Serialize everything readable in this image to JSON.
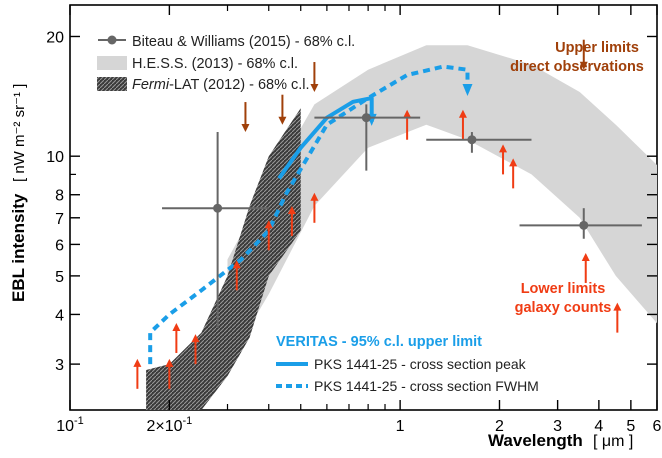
{
  "chart_data": {
    "type": "scatter",
    "xlabel": "Wavelength",
    "xunit": "[ μm ]",
    "ylabel": "EBL intensity",
    "yunit": "[ nW m⁻² sr⁻¹ ]",
    "xscale": "log",
    "yscale": "log",
    "xlim": [
      0.1,
      6
    ],
    "ylim": [
      2.3,
      24
    ],
    "grid": false,
    "x_ticks": [
      {
        "value": 0.1,
        "label": "10",
        "sup": "-1"
      },
      {
        "value": 0.2,
        "label": "2×10",
        "sup": "-1"
      },
      {
        "value": 1,
        "label": "1",
        "sup": ""
      },
      {
        "value": 2,
        "label": "2",
        "sup": ""
      },
      {
        "value": 3,
        "label": "3",
        "sup": ""
      },
      {
        "value": 4,
        "label": "4",
        "sup": ""
      },
      {
        "value": 5,
        "label": "5",
        "sup": ""
      },
      {
        "value": 6,
        "label": "6",
        "sup": ""
      }
    ],
    "x_minor_ticks": [
      0.3,
      0.4,
      0.5,
      0.6,
      0.7,
      0.8,
      0.9
    ],
    "y_ticks": [
      {
        "value": 3,
        "label": "3"
      },
      {
        "value": 4,
        "label": "4"
      },
      {
        "value": 5,
        "label": "5"
      },
      {
        "value": 6,
        "label": "6"
      },
      {
        "value": 7,
        "label": "7"
      },
      {
        "value": 8,
        "label": "8"
      },
      {
        "value": 10,
        "label": "10"
      },
      {
        "value": 20,
        "label": "20"
      }
    ],
    "y_minor_ticks": [
      9,
      30
    ],
    "legend": {
      "placement": "top-left",
      "entries": [
        {
          "text": "Biteau & Williams (2015) - 68% c.l.",
          "marker": "point",
          "color": "#666666"
        },
        {
          "text": "H.E.S.S. (2013) - 68% c.l.",
          "marker": "light-band",
          "color": "#d6d6d6"
        },
        {
          "text_italic": "Fermi",
          "text": "-LAT (2012) - 68% c.l.",
          "marker": "dark-band",
          "color": "#555555"
        }
      ]
    },
    "veritas_legend": {
      "title": "VERITAS - 95% c.l. upper limit",
      "color": "#1a9ee8",
      "entries": [
        {
          "text": "PKS 1441-25 - cross section peak",
          "style": "solid"
        },
        {
          "text": "PKS 1441-25 - cross section FWHM",
          "style": "dashed"
        }
      ]
    },
    "annotations": [
      {
        "lines": [
          "Upper limits",
          "direct observations"
        ],
        "color": "#a0400a"
      },
      {
        "lines": [
          "Lower limits",
          "galaxy counts"
        ],
        "color": "#f03c14"
      }
    ],
    "series": [
      {
        "name": "Biteau & Williams (2015) - 68% c.l.",
        "kind": "points",
        "color": "#666666",
        "points": [
          {
            "x": 0.28,
            "y": 7.4,
            "xerr": [
              0.19,
              0.4
            ],
            "yerr": [
              3.7,
              11.5
            ]
          },
          {
            "x": 0.79,
            "y": 12.5,
            "xerr": [
              0.55,
              1.15
            ],
            "yerr": [
              9.2,
              13.5
            ]
          },
          {
            "x": 1.65,
            "y": 11.0,
            "xerr": [
              1.2,
              2.5
            ],
            "yerr": [
              10.2,
              11.5
            ]
          },
          {
            "x": 3.6,
            "y": 6.7,
            "xerr": [
              2.3,
              5.4
            ],
            "yerr": [
              6.2,
              7.4
            ]
          }
        ]
      },
      {
        "name": "H.E.S.S. (2013) - 68% c.l.",
        "kind": "band",
        "color": "#d6d6d6",
        "upper": [
          [
            0.3,
            5.5
          ],
          [
            0.4,
            8.5
          ],
          [
            0.55,
            13.5
          ],
          [
            0.8,
            16.5
          ],
          [
            1.2,
            19
          ],
          [
            1.6,
            19
          ],
          [
            2.5,
            17
          ],
          [
            3.5,
            14.5
          ],
          [
            4.5,
            12
          ],
          [
            6,
            9.5
          ]
        ],
        "lower": [
          [
            0.3,
            3.0
          ],
          [
            0.4,
            4.5
          ],
          [
            0.55,
            7.5
          ],
          [
            0.8,
            10.5
          ],
          [
            1.2,
            12
          ],
          [
            1.6,
            11
          ],
          [
            2.5,
            9
          ],
          [
            3.5,
            7
          ],
          [
            4.5,
            5
          ],
          [
            6,
            3.8
          ]
        ]
      },
      {
        "name": "Fermi-LAT (2012) - 68% c.l.",
        "kind": "band",
        "color": "#555555",
        "upper": [
          [
            0.17,
            2.9
          ],
          [
            0.2,
            3.0
          ],
          [
            0.25,
            3.6
          ],
          [
            0.3,
            5.0
          ],
          [
            0.35,
            7.5
          ],
          [
            0.4,
            10.0
          ],
          [
            0.5,
            13.2
          ]
        ],
        "lower": [
          [
            0.17,
            2.3
          ],
          [
            0.2,
            2.3
          ],
          [
            0.25,
            2.3
          ],
          [
            0.3,
            2.8
          ],
          [
            0.35,
            3.5
          ],
          [
            0.4,
            5.0
          ],
          [
            0.5,
            6.5
          ]
        ]
      },
      {
        "name": "PKS 1441-25 - cross section peak",
        "kind": "line",
        "style": "solid",
        "color": "#1a9ee8",
        "points": [
          [
            0.43,
            8.8
          ],
          [
            0.5,
            10.5
          ],
          [
            0.6,
            12.5
          ],
          [
            0.72,
            13.7
          ],
          [
            0.82,
            14.0
          ],
          [
            0.82,
            12.2
          ]
        ]
      },
      {
        "name": "PKS 1441-25 - cross section FWHM",
        "kind": "line",
        "style": "dashed",
        "color": "#1a9ee8",
        "points": [
          [
            0.175,
            3.0
          ],
          [
            0.175,
            3.6
          ],
          [
            0.2,
            4.0
          ],
          [
            0.25,
            4.6
          ],
          [
            0.33,
            5.5
          ],
          [
            0.4,
            6.5
          ],
          [
            0.45,
            8.0
          ],
          [
            0.6,
            12.0
          ],
          [
            0.8,
            14.0
          ],
          [
            1.05,
            16.0
          ],
          [
            1.35,
            16.8
          ],
          [
            1.6,
            16.5
          ],
          [
            1.6,
            14.5
          ]
        ]
      },
      {
        "name": "Upper limits direct observations",
        "kind": "arrows-down",
        "color": "#a0400a",
        "points": [
          [
            0.34,
            11.5
          ],
          [
            0.44,
            12.0
          ],
          [
            0.55,
            14.5
          ],
          [
            1.2,
            24
          ],
          [
            2.1,
            24
          ],
          [
            3.6,
            16.5
          ],
          [
            5.1,
            24
          ]
        ]
      },
      {
        "name": "Lower limits galaxy counts",
        "kind": "arrows-up",
        "color": "#f03c14",
        "points": [
          [
            0.16,
            2.6
          ],
          [
            0.2,
            2.6
          ],
          [
            0.21,
            3.2
          ],
          [
            0.24,
            3.0
          ],
          [
            0.32,
            4.6
          ],
          [
            0.4,
            5.8
          ],
          [
            0.47,
            6.3
          ],
          [
            0.55,
            6.8
          ],
          [
            1.05,
            11.0
          ],
          [
            1.55,
            11.0
          ],
          [
            2.05,
            9.0
          ],
          [
            2.2,
            8.3
          ],
          [
            3.65,
            4.8
          ],
          [
            4.55,
            3.6
          ]
        ]
      }
    ]
  }
}
